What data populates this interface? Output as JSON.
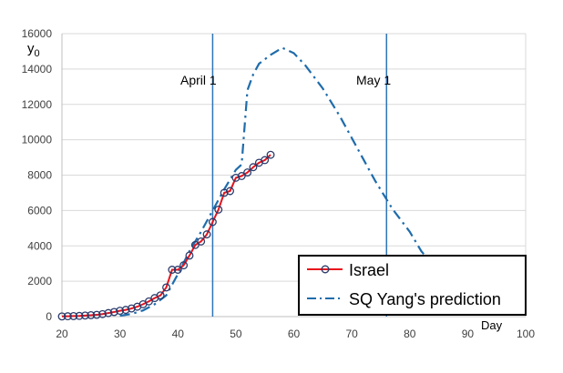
{
  "chart_data": {
    "type": "line",
    "ylabel_base": "y",
    "ylabel_sub": "0",
    "xlabel": "Day",
    "xlim": [
      20,
      100
    ],
    "ylim": [
      0,
      16000
    ],
    "xticks": [
      "20",
      "30",
      "40",
      "50",
      "60",
      "70",
      "80",
      "90",
      "100"
    ],
    "yticks": [
      "0",
      "2000",
      "4000",
      "6000",
      "8000",
      "10000",
      "12000",
      "14000",
      "16000"
    ],
    "grid": "horizontal",
    "legend_position": "bottom-right",
    "annotations": [
      {
        "text": "April 1",
        "x": 46
      },
      {
        "text": "May 1",
        "x": 76
      }
    ],
    "series": [
      {
        "name": "Israel",
        "color": "#e8121c",
        "marker_color": "#2a3a6a",
        "style": "solid-with-circles",
        "x": [
          20,
          21,
          22,
          23,
          24,
          25,
          26,
          27,
          28,
          29,
          30,
          31,
          32,
          33,
          34,
          35,
          36,
          37,
          38,
          39,
          40,
          41,
          42,
          43,
          44,
          45,
          46,
          47,
          48,
          49,
          50,
          51,
          52,
          53,
          54,
          55,
          56
        ],
        "y": [
          10,
          20,
          30,
          40,
          60,
          80,
          100,
          140,
          200,
          260,
          330,
          380,
          460,
          560,
          700,
          860,
          1050,
          1200,
          1650,
          2650,
          2650,
          2900,
          3450,
          4050,
          4250,
          4650,
          5350,
          6050,
          7000,
          7100,
          7850,
          7950,
          8150,
          8450,
          8700,
          8850,
          9150
        ]
      },
      {
        "name": "SQ Yang's prediction",
        "color": "#1f6cab",
        "style": "dash-dot",
        "x": [
          30,
          32,
          34,
          36,
          38,
          40,
          42,
          44,
          46,
          48,
          50,
          51,
          52,
          53,
          54,
          56,
          58,
          60,
          62,
          65,
          68,
          71,
          74,
          77,
          80,
          82,
          83
        ],
        "y": [
          50,
          150,
          350,
          700,
          1200,
          2400,
          3700,
          4800,
          6000,
          7200,
          8300,
          8600,
          12800,
          13700,
          14300,
          14800,
          15200,
          14900,
          14200,
          12900,
          11300,
          9500,
          7700,
          6100,
          4800,
          3700,
          3300
        ]
      }
    ]
  }
}
